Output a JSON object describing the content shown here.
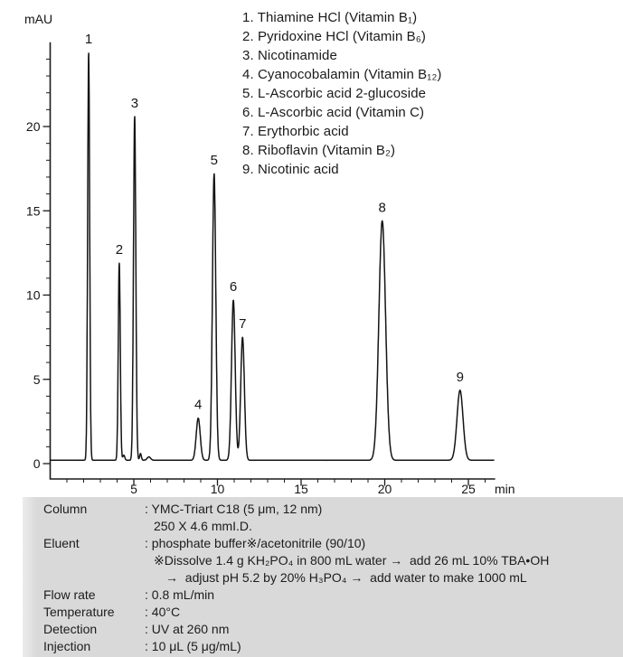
{
  "chart_data": {
    "type": "line",
    "title": "",
    "xlabel": "",
    "ylabel": "mAU",
    "x_unit_label": "min",
    "x_ticks": [
      5,
      10,
      15,
      20,
      25
    ],
    "y_ticks": [
      0,
      5,
      10,
      15,
      20
    ],
    "x_minor_step": 1,
    "y_minor_step": 1,
    "xlim": [
      0,
      26.6
    ],
    "ylim": [
      -0.9,
      25
    ],
    "grid": "off",
    "legend_position": "top-right",
    "baseline_mau": 0.2,
    "noise_mau": 0.07,
    "line_color": "#141414",
    "peaks": [
      {
        "label": "1",
        "compound": "Thiamine HCl (Vitamin B1)",
        "rt_min": 2.3,
        "height_mau": 24.4,
        "sigma_min": 0.06
      },
      {
        "label": "2",
        "compound": "Pyridoxine HCl (Vitamin B6)",
        "rt_min": 4.13,
        "height_mau": 11.9,
        "sigma_min": 0.06
      },
      {
        "label": "3",
        "compound": "Nicotinamide",
        "rt_min": 5.05,
        "height_mau": 20.6,
        "sigma_min": 0.07
      },
      {
        "label": "4",
        "compound": "Cyanocobalamin (Vitamin B12)",
        "rt_min": 8.85,
        "height_mau": 2.7,
        "sigma_min": 0.12
      },
      {
        "label": "5",
        "compound": "L-Ascorbic acid 2-glucoside",
        "rt_min": 9.8,
        "height_mau": 17.2,
        "sigma_min": 0.1
      },
      {
        "label": "6",
        "compound": "L-Ascorbic acid (Vitamin C)",
        "rt_min": 10.95,
        "height_mau": 9.7,
        "sigma_min": 0.11
      },
      {
        "label": "7",
        "compound": "Erythorbic acid",
        "rt_min": 11.5,
        "height_mau": 7.5,
        "sigma_min": 0.11
      },
      {
        "label": "8",
        "compound": "Riboflavin (Vitamin B2)",
        "rt_min": 19.85,
        "height_mau": 14.4,
        "sigma_min": 0.2
      },
      {
        "label": "9",
        "compound": "Nicotinic acid",
        "rt_min": 24.5,
        "height_mau": 4.35,
        "sigma_min": 0.18
      }
    ],
    "artifacts": [
      {
        "rt_min": 4.4,
        "height_mau": 0.3,
        "sigma_min": 0.06
      },
      {
        "rt_min": 5.4,
        "height_mau": 0.4,
        "sigma_min": 0.05
      },
      {
        "rt_min": 5.9,
        "height_mau": 0.2,
        "sigma_min": 0.1
      }
    ]
  },
  "legend": {
    "items": [
      "1. Thiamine HCl (Vitamin B₁)",
      "2. Pyridoxine HCl (Vitamin B₆)",
      "3. Nicotinamide",
      "4. Cyanocobalamin (Vitamin B₁₂)",
      "5. L-Ascorbic acid 2-glucoside",
      "6. L-Ascorbic acid (Vitamin C)",
      "7. Erythorbic acid",
      "8. Riboflavin (Vitamin B₂)",
      "9. Nicotinic acid"
    ]
  },
  "conditions": {
    "rows": [
      {
        "label": "Column",
        "lines": [
          ": YMC-Triart C18 (5 μm, 12 nm)",
          "250 X 4.6 mmI.D."
        ]
      },
      {
        "label": "Eluent",
        "lines": [
          ": phosphate buffer※/acetonitrile (90/10)",
          "※Dissolve 1.4 g KH₂PO₄ in 800 mL water →  add 26 mL 10% TBA•OH",
          "→  adjust pH 5.2 by 20% H₃PO₄ →  add water to make 1000 mL"
        ]
      },
      {
        "label": "Flow rate",
        "lines": [
          ": 0.8 mL/min"
        ]
      },
      {
        "label": "Temperature",
        "lines": [
          ": 40°C"
        ]
      },
      {
        "label": "Detection",
        "lines": [
          ": UV at 260 nm"
        ]
      },
      {
        "label": "Injection",
        "lines": [
          ": 10 μL (5 μg/mL)"
        ]
      }
    ]
  }
}
